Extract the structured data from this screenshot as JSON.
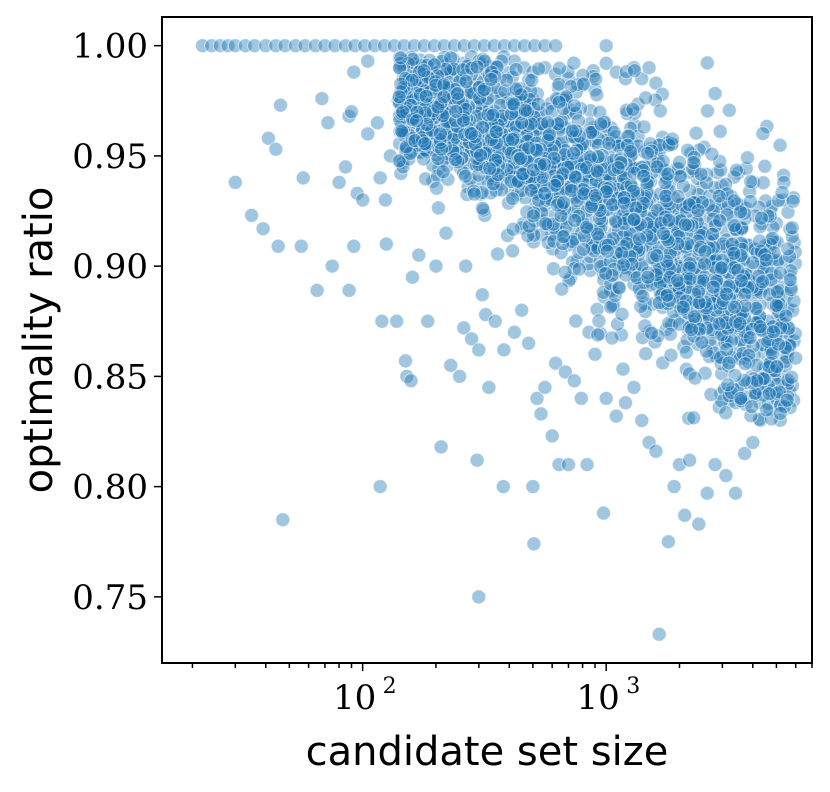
{
  "chart_data": {
    "type": "scatter",
    "xscale": "log",
    "xlim": [
      15,
      7000
    ],
    "ylim": [
      0.72,
      1.013
    ],
    "xlabel": "candidate set size",
    "ylabel": "optimality ratio",
    "x_ticks": [
      {
        "value": 100,
        "base": "10",
        "exp": "2"
      },
      {
        "value": 1000,
        "base": "10",
        "exp": "3"
      }
    ],
    "y_ticks": [
      {
        "value": 0.75,
        "label": "0.75"
      },
      {
        "value": 0.8,
        "label": "0.80"
      },
      {
        "value": 0.85,
        "label": "0.85"
      },
      {
        "value": 0.9,
        "label": "0.90"
      },
      {
        "value": 0.95,
        "label": "0.95"
      },
      {
        "value": 1.0,
        "label": "1.00"
      }
    ],
    "color": "#1f77b4",
    "series": [
      {
        "points": [
          [
            22,
            1.0
          ],
          [
            24,
            1.0
          ],
          [
            26,
            1.0
          ],
          [
            28,
            1.0
          ],
          [
            30,
            1.0
          ],
          [
            33,
            1.0
          ],
          [
            36,
            1.0
          ],
          [
            40,
            1.0
          ],
          [
            44,
            1.0
          ],
          [
            48,
            1.0
          ],
          [
            53,
            1.0
          ],
          [
            58,
            1.0
          ],
          [
            64,
            1.0
          ],
          [
            70,
            1.0
          ],
          [
            77,
            1.0
          ],
          [
            85,
            1.0
          ],
          [
            93,
            1.0
          ],
          [
            102,
            1.0
          ],
          [
            112,
            1.0
          ],
          [
            123,
            1.0
          ],
          [
            135,
            1.0
          ],
          [
            148,
            1.0
          ],
          [
            163,
            1.0
          ],
          [
            179,
            1.0
          ],
          [
            197,
            1.0
          ],
          [
            216,
            1.0
          ],
          [
            238,
            1.0
          ],
          [
            261,
            1.0
          ],
          [
            287,
            1.0
          ],
          [
            316,
            1.0
          ],
          [
            347,
            1.0
          ],
          [
            382,
            1.0
          ],
          [
            420,
            1.0
          ],
          [
            462,
            1.0
          ],
          [
            508,
            1.0
          ],
          [
            560,
            1.0
          ],
          [
            620,
            1.0
          ],
          [
            1000,
            1.0
          ],
          [
            46,
            0.973
          ],
          [
            41,
            0.958
          ],
          [
            44,
            0.953
          ],
          [
            30,
            0.938
          ],
          [
            35,
            0.923
          ],
          [
            39,
            0.917
          ],
          [
            45,
            0.909
          ],
          [
            56,
            0.909
          ],
          [
            57,
            0.94
          ],
          [
            68,
            0.976
          ],
          [
            72,
            0.965
          ],
          [
            80,
            0.938
          ],
          [
            85,
            0.945
          ],
          [
            88,
            0.968
          ],
          [
            90,
            0.97
          ],
          [
            95,
            0.933
          ],
          [
            100,
            0.93
          ],
          [
            92,
            0.988
          ],
          [
            105,
            0.993
          ],
          [
            65,
            0.889
          ],
          [
            75,
            0.9
          ],
          [
            88,
            0.889
          ],
          [
            92,
            0.909
          ],
          [
            105,
            0.96
          ],
          [
            115,
            0.965
          ],
          [
            118,
            0.94
          ],
          [
            124,
            0.93
          ],
          [
            130,
            0.95
          ],
          [
            140,
            0.975
          ],
          [
            150,
            0.985
          ],
          [
            47,
            0.785
          ],
          [
            118,
            0.8
          ],
          [
            120,
            0.875
          ],
          [
            125,
            0.91
          ],
          [
            138,
            0.875
          ],
          [
            150,
            0.857
          ],
          [
            152,
            0.85
          ],
          [
            158,
            0.848
          ],
          [
            160,
            0.895
          ],
          [
            170,
            0.905
          ],
          [
            185,
            0.875
          ],
          [
            210,
            0.818
          ],
          [
            295,
            0.812
          ],
          [
            300,
            0.75
          ],
          [
            378,
            0.8
          ],
          [
            500,
            0.8
          ],
          [
            505,
            0.774
          ],
          [
            640,
            0.81
          ],
          [
            700,
            0.81
          ],
          [
            835,
            0.81
          ],
          [
            975,
            0.788
          ],
          [
            200,
            0.9
          ],
          [
            220,
            0.915
          ],
          [
            230,
            0.855
          ],
          [
            250,
            0.85
          ],
          [
            260,
            0.872
          ],
          [
            265,
            0.9
          ],
          [
            280,
            0.867
          ],
          [
            300,
            0.862
          ],
          [
            310,
            0.887
          ],
          [
            320,
            0.878
          ],
          [
            330,
            0.845
          ],
          [
            350,
            0.875
          ],
          [
            380,
            0.862
          ],
          [
            420,
            0.87
          ],
          [
            450,
            0.88
          ],
          [
            480,
            0.865
          ],
          [
            520,
            0.84
          ],
          [
            540,
            0.833
          ],
          [
            560,
            0.845
          ],
          [
            600,
            0.823
          ],
          [
            620,
            0.856
          ],
          [
            680,
            0.852
          ],
          [
            740,
            0.848
          ],
          [
            790,
            0.84
          ],
          [
            850,
            0.87
          ],
          [
            900,
            0.86
          ],
          [
            1000,
            0.84
          ],
          [
            1100,
            0.832
          ],
          [
            1200,
            0.838
          ],
          [
            1300,
            0.845
          ],
          [
            1400,
            0.83
          ],
          [
            1500,
            0.82
          ],
          [
            1600,
            0.816
          ],
          [
            1650,
            0.733
          ],
          [
            1800,
            0.775
          ],
          [
            1900,
            0.8
          ],
          [
            2000,
            0.81
          ],
          [
            2100,
            0.787
          ],
          [
            2200,
            0.812
          ],
          [
            2400,
            0.783
          ],
          [
            2600,
            0.797
          ],
          [
            2800,
            0.81
          ],
          [
            3100,
            0.805
          ],
          [
            3400,
            0.797
          ],
          [
            3700,
            0.815
          ],
          [
            4000,
            0.82
          ],
          [
            4300,
            0.83
          ],
          [
            4700,
            0.835
          ],
          [
            200,
            0.985
          ],
          [
            220,
            0.99
          ],
          [
            240,
            0.99
          ],
          [
            260,
            0.992
          ],
          [
            280,
            0.995
          ],
          [
            300,
            0.993
          ],
          [
            340,
            0.99
          ],
          [
            380,
            0.995
          ],
          [
            420,
            0.993
          ],
          [
            460,
            0.99
          ],
          [
            500,
            0.988
          ],
          [
            560,
            0.99
          ],
          [
            620,
            0.987
          ],
          [
            700,
            0.985
          ],
          [
            800,
            0.982
          ],
          [
            900,
            0.98
          ],
          [
            1000,
            0.992
          ],
          [
            1100,
            0.988
          ],
          [
            1200,
            0.985
          ],
          [
            1300,
            0.99
          ],
          [
            1400,
            0.985
          ],
          [
            1500,
            0.99
          ],
          [
            1600,
            0.983
          ],
          [
            1700,
            0.978
          ]
        ]
      }
    ]
  }
}
